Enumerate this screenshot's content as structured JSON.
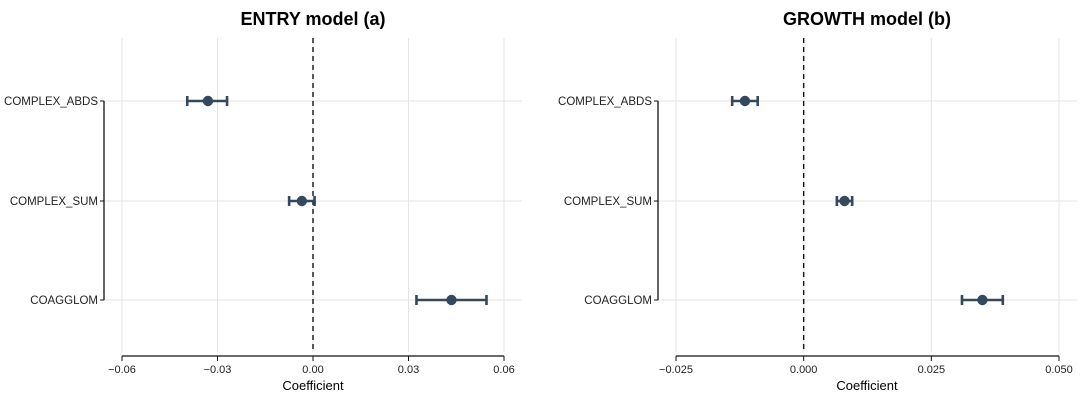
{
  "chart_data": [
    {
      "type": "dot-whisker",
      "title": "ENTRY model (a)",
      "xlabel": "Coefficient",
      "ylabel": "",
      "xlim": [
        -0.06,
        0.06
      ],
      "xticks": [
        -0.06,
        -0.03,
        0.0,
        0.03,
        0.06
      ],
      "xtick_labels": [
        "−0.06",
        "−0.03",
        "0.00",
        "0.03",
        "0.06"
      ],
      "reference_line": 0,
      "grid": true,
      "categories": [
        "COMPLEX_ABDS",
        "COMPLEX_SUM",
        "COAGGLOM"
      ],
      "estimates": [
        -0.033,
        -0.0035,
        0.0435
      ],
      "ci_low": [
        -0.0395,
        -0.0075,
        0.0325
      ],
      "ci_high": [
        -0.027,
        0.0005,
        0.0545
      ],
      "color": "#34495e"
    },
    {
      "type": "dot-whisker",
      "title": "GROWTH model (b)",
      "xlabel": "Coefficient",
      "ylabel": "",
      "xlim": [
        -0.025,
        0.05
      ],
      "xticks": [
        -0.025,
        0.0,
        0.025,
        0.05
      ],
      "xtick_labels": [
        "−0.025",
        "0.000",
        "0.025",
        "0.050"
      ],
      "reference_line": 0,
      "grid": true,
      "categories": [
        "COMPLEX_ABDS",
        "COMPLEX_SUM",
        "COAGGLOM"
      ],
      "estimates": [
        -0.0115,
        0.008,
        0.035
      ],
      "ci_low": [
        -0.014,
        0.0065,
        0.031
      ],
      "ci_high": [
        -0.009,
        0.0095,
        0.039
      ],
      "color": "#34495e"
    }
  ]
}
